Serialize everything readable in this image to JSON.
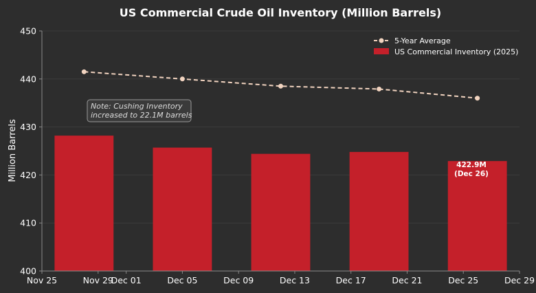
{
  "chart_data": {
    "type": "bar",
    "title": "US Commercial Crude Oil Inventory (Million Barrels)",
    "xlabel": "",
    "ylabel": "Million Barrels",
    "ylim": [
      400,
      450
    ],
    "yticks": [
      400,
      410,
      420,
      430,
      440,
      450
    ],
    "xlim_days": [
      0,
      34
    ],
    "xticks": [
      {
        "day": 0,
        "label": "Nov 25"
      },
      {
        "day": 4,
        "label": "Nov 29"
      },
      {
        "day": 6,
        "label": "Dec 01"
      },
      {
        "day": 10,
        "label": "Dec 05"
      },
      {
        "day": 14,
        "label": "Dec 09"
      },
      {
        "day": 18,
        "label": "Dec 13"
      },
      {
        "day": 22,
        "label": "Dec 17"
      },
      {
        "day": 26,
        "label": "Dec 21"
      },
      {
        "day": 30,
        "label": "Dec 25"
      },
      {
        "day": 34,
        "label": "Dec 29"
      }
    ],
    "grid": true,
    "legend_position": "top-right",
    "series": [
      {
        "name": "US Commercial Inventory (2025)",
        "kind": "bar",
        "color": "#c4202a",
        "bar_width_days": 4.2,
        "points": [
          {
            "day": 3,
            "value": 428.2
          },
          {
            "day": 10,
            "value": 425.7
          },
          {
            "day": 17,
            "value": 424.4
          },
          {
            "day": 24,
            "value": 424.8
          },
          {
            "day": 31,
            "value": 422.9
          }
        ]
      },
      {
        "name": "5-Year Average",
        "kind": "line",
        "color": "#f2d4c0",
        "points": [
          {
            "day": 3,
            "value": 441.5
          },
          {
            "day": 10,
            "value": 440.0
          },
          {
            "day": 17,
            "value": 438.5
          },
          {
            "day": 24,
            "value": 437.9
          },
          {
            "day": 31,
            "value": 436.0
          }
        ]
      }
    ],
    "annotations": {
      "note_line1": "Note: Cushing Inventory",
      "note_line2": "increased to 22.1M barrels",
      "last_bar_line1": "422.9M",
      "last_bar_line2": "(Dec 26)"
    }
  }
}
